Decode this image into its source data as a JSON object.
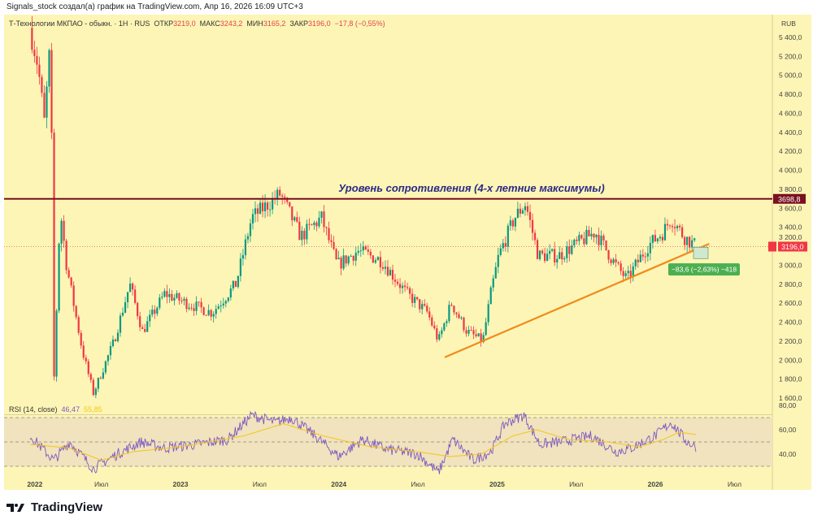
{
  "credit": "Signals_stock создал(а) график на TradingView.com, Апр 16, 2026 16:09 UTC+3",
  "legend": {
    "symbol": "Т-Технологии МКПАО - обыкн. · 1H · RUS",
    "open_l": "ОТКР",
    "open": "3219,0",
    "high_l": "МАКС",
    "high": "3243,2",
    "low_l": "МИН",
    "low": "3165,2",
    "close_l": "ЗАКР",
    "close": "3196,0",
    "change": "−17,8 (−0,55%)"
  },
  "rsi_legend": {
    "name": "RSI (14, close)",
    "value": "46,47",
    "ma": "55,85"
  },
  "logo": "TradingView",
  "colors": {
    "bg": "#fdf5b5",
    "up": "#089981",
    "down": "#f23645",
    "resistance": "#7a1020",
    "trend": "#f08a1c",
    "rsi": "#7e57c2",
    "rsi_ma": "#f5c518"
  },
  "chart_data": {
    "type": "candlestick",
    "currency": "RUB",
    "price_ticks": [
      "5 400,0",
      "5 200,0",
      "5 000,0",
      "4 800,0",
      "4 600,0",
      "4 400,0",
      "4 200,0",
      "4 000,0",
      "3 800,0",
      "3 600,0",
      "3 400,0",
      "3 200,0",
      "3 000,0",
      "2 800,0",
      "2 600,0",
      "2 400,0",
      "2 200,0",
      "2 000,0",
      "1 800,0",
      "1 600,0"
    ],
    "price_tick_values": [
      5400,
      5200,
      5000,
      4800,
      4600,
      4400,
      4200,
      4000,
      3800,
      3600,
      3400,
      3200,
      3000,
      2800,
      2600,
      2400,
      2200,
      2000,
      1800,
      1600
    ],
    "ylim": [
      1560,
      5620
    ],
    "time_ticks": [
      {
        "t": 2022.08,
        "label": "2022"
      },
      {
        "t": 2022.5,
        "label": "Июл"
      },
      {
        "t": 2023.0,
        "label": "2023"
      },
      {
        "t": 2023.5,
        "label": "Июл"
      },
      {
        "t": 2024.0,
        "label": "2024"
      },
      {
        "t": 2024.5,
        "label": "Июл"
      },
      {
        "t": 2025.0,
        "label": "2025"
      },
      {
        "t": 2025.5,
        "label": "Июл"
      },
      {
        "t": 2026.0,
        "label": "2026"
      },
      {
        "t": 2026.5,
        "label": "Июл"
      }
    ],
    "path": [
      [
        2022.05,
        5500
      ],
      [
        2022.1,
        5100
      ],
      [
        2022.14,
        4500
      ],
      [
        2022.18,
        5400
      ],
      [
        2022.2,
        1750
      ],
      [
        2022.24,
        3600
      ],
      [
        2022.28,
        3000
      ],
      [
        2022.38,
        2100
      ],
      [
        2022.45,
        1650
      ],
      [
        2022.58,
        2200
      ],
      [
        2022.68,
        2800
      ],
      [
        2022.76,
        2300
      ],
      [
        2022.9,
        2700
      ],
      [
        2023.04,
        2600
      ],
      [
        2023.2,
        2500
      ],
      [
        2023.35,
        2800
      ],
      [
        2023.45,
        3500
      ],
      [
        2023.63,
        3750
      ],
      [
        2023.76,
        3300
      ],
      [
        2023.89,
        3500
      ],
      [
        2023.99,
        3000
      ],
      [
        2024.12,
        3150
      ],
      [
        2024.27,
        3050
      ],
      [
        2024.43,
        2700
      ],
      [
        2024.56,
        2500
      ],
      [
        2024.63,
        2200
      ],
      [
        2024.71,
        2600
      ],
      [
        2024.81,
        2300
      ],
      [
        2024.91,
        2200
      ],
      [
        2024.96,
        2700
      ],
      [
        2025.01,
        3100
      ],
      [
        2025.11,
        3500
      ],
      [
        2025.18,
        3650
      ],
      [
        2025.26,
        3100
      ],
      [
        2025.39,
        3100
      ],
      [
        2025.62,
        3350
      ],
      [
        2025.75,
        3000
      ],
      [
        2025.82,
        2850
      ],
      [
        2025.95,
        3200
      ],
      [
        2026.05,
        3350
      ],
      [
        2026.1,
        3500
      ],
      [
        2026.18,
        3300
      ],
      [
        2026.26,
        3196
      ]
    ],
    "last_price": 3196.0,
    "last_price_label": "3196,0",
    "resistance": {
      "value": 3698.8,
      "label": "3698,8",
      "text": "Уровень сопротивления (4-х летние максимумы)"
    },
    "trendline": [
      [
        2024.67,
        2030
      ],
      [
        2026.34,
        3225
      ]
    ],
    "measure_label": "−83,6 (−2,63%) −418",
    "rsi": {
      "ticks": [
        "80,00",
        "60,00",
        "40,00"
      ],
      "tick_values": [
        80,
        60,
        40
      ],
      "bands": [
        70,
        30
      ],
      "ylim": [
        20,
        82
      ],
      "path": [
        [
          2022.05,
          55
        ],
        [
          2022.2,
          35
        ],
        [
          2022.3,
          50
        ],
        [
          2022.45,
          28
        ],
        [
          2022.6,
          40
        ],
        [
          2022.75,
          50
        ],
        [
          2022.9,
          45
        ],
        [
          2023.1,
          48
        ],
        [
          2023.3,
          52
        ],
        [
          2023.45,
          72
        ],
        [
          2023.6,
          66
        ],
        [
          2023.7,
          70
        ],
        [
          2023.85,
          55
        ],
        [
          2024.0,
          38
        ],
        [
          2024.15,
          52
        ],
        [
          2024.3,
          44
        ],
        [
          2024.5,
          40
        ],
        [
          2024.63,
          25
        ],
        [
          2024.72,
          52
        ],
        [
          2024.85,
          35
        ],
        [
          2024.96,
          42
        ],
        [
          2025.05,
          65
        ],
        [
          2025.17,
          72
        ],
        [
          2025.27,
          48
        ],
        [
          2025.4,
          50
        ],
        [
          2025.6,
          55
        ],
        [
          2025.75,
          42
        ],
        [
          2025.85,
          45
        ],
        [
          2026.0,
          55
        ],
        [
          2026.1,
          66
        ],
        [
          2026.2,
          50
        ],
        [
          2026.26,
          46
        ]
      ],
      "ma_path": [
        [
          2022.05,
          48
        ],
        [
          2022.3,
          45
        ],
        [
          2022.5,
          35
        ],
        [
          2022.7,
          42
        ],
        [
          2023.0,
          46
        ],
        [
          2023.4,
          55
        ],
        [
          2023.65,
          65
        ],
        [
          2023.9,
          55
        ],
        [
          2024.2,
          46
        ],
        [
          2024.5,
          42
        ],
        [
          2024.7,
          38
        ],
        [
          2024.9,
          40
        ],
        [
          2025.1,
          55
        ],
        [
          2025.25,
          60
        ],
        [
          2025.45,
          52
        ],
        [
          2025.7,
          50
        ],
        [
          2025.9,
          46
        ],
        [
          2026.05,
          52
        ],
        [
          2026.15,
          58
        ],
        [
          2026.26,
          56
        ]
      ]
    }
  }
}
